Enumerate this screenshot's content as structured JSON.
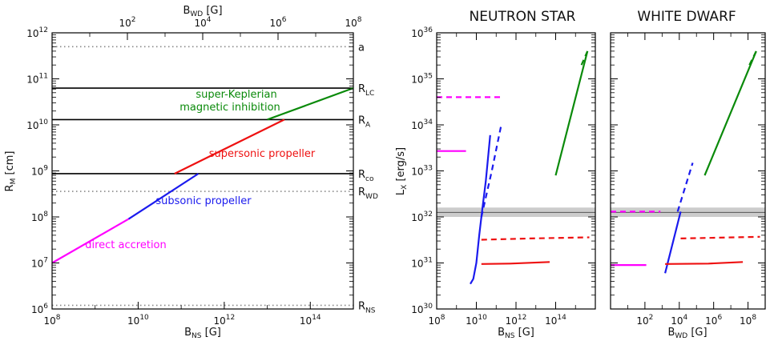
{
  "colors": {
    "black": "#000000",
    "green": "#0a8a0a",
    "red": "#ee1111",
    "blue": "#1a1aee",
    "magenta": "#ff00ff",
    "gray_dotted": "#888888",
    "band": "#cccccc"
  },
  "chart_data": [
    {
      "type": "line",
      "xlabel": "B_NS [G]",
      "x2label": "B_WD [G]",
      "ylabel": "R_M [cm]",
      "x_scale": "log",
      "y_scale": "log",
      "xlim": [
        100000000.0,
        1000000000000000.0
      ],
      "x2lim": [
        1,
        100000000.0
      ],
      "ylim": [
        1000000.0,
        1000000000000.0
      ],
      "x_ticks": [
        {
          "value": 100000000.0,
          "base": "10",
          "exp": "8"
        },
        {
          "value": 10000000000.0,
          "base": "10",
          "exp": "10"
        },
        {
          "value": 1000000000000.0,
          "base": "10",
          "exp": "12"
        },
        {
          "value": 100000000000000.0,
          "base": "10",
          "exp": "14"
        }
      ],
      "x2_ticks": [
        {
          "value": 100.0,
          "base": "10",
          "exp": "2"
        },
        {
          "value": 10000.0,
          "base": "10",
          "exp": "4"
        },
        {
          "value": 1000000.0,
          "base": "10",
          "exp": "6"
        },
        {
          "value": 100000000.0,
          "base": "10",
          "exp": "8"
        }
      ],
      "y_ticks": [
        {
          "value": 1000000.0,
          "base": "10",
          "exp": "6"
        },
        {
          "value": 10000000.0,
          "base": "10",
          "exp": "7"
        },
        {
          "value": 100000000.0,
          "base": "10",
          "exp": "8"
        },
        {
          "value": 1000000000.0,
          "base": "10",
          "exp": "9"
        },
        {
          "value": 10000000000.0,
          "base": "10",
          "exp": "10"
        },
        {
          "value": 100000000000.0,
          "base": "10",
          "exp": "11"
        },
        {
          "value": 1000000000000.0,
          "base": "10",
          "exp": "12"
        }
      ],
      "reference_lines": [
        {
          "name": "a",
          "sub": "",
          "y": 500000000000.0,
          "style": "dotted"
        },
        {
          "name": "R",
          "sub": "LC",
          "y": 63000000000.0,
          "style": "solid"
        },
        {
          "name": "R",
          "sub": "A",
          "y": 13000000000.0,
          "style": "solid"
        },
        {
          "name": "R",
          "sub": "co",
          "y": 870000000.0,
          "style": "solid"
        },
        {
          "name": "R",
          "sub": "WD",
          "y": 360000000.0,
          "style": "dotted"
        },
        {
          "name": "R",
          "sub": "NS",
          "y": 1200000.0,
          "style": "dotted"
        }
      ],
      "series": [
        {
          "name": "direct accretion",
          "color_key": "magenta",
          "x": [
            100000000.0,
            6000000000.0
          ],
          "y": [
            10000000.0,
            90000000.0
          ]
        },
        {
          "name": "subsonic propeller",
          "color_key": "blue",
          "x": [
            6000000000.0,
            250000000000.0
          ],
          "y": [
            90000000.0,
            870000000.0
          ]
        },
        {
          "name": "supersonic propeller",
          "color_key": "red",
          "x": [
            70000000000.0,
            25000000000000.0
          ],
          "y": [
            870000000.0,
            13000000000.0
          ]
        },
        {
          "name": "super-Keplerian magnetic inhibition",
          "color_key": "green",
          "x": [
            10000000000000.0,
            1000000000000000.0
          ],
          "y": [
            13000000000.0,
            63000000000.0
          ]
        }
      ],
      "annotations": {
        "super_keplerian_1": "super-Keplerian",
        "super_keplerian_2": "magnetic inhibition",
        "supersonic": "supersonic propeller",
        "subsonic": "subsonic propeller",
        "direct": "direct accretion"
      }
    },
    {
      "type": "line",
      "title": "NEUTRON STAR",
      "xlabel": "B_NS [G]",
      "ylabel": "L_X [erg/s]",
      "x_scale": "log",
      "y_scale": "log",
      "xlim": [
        100000000.0,
        1e+16
      ],
      "ylim": [
        1e+30,
        1e+36
      ],
      "x_ticks": [
        {
          "value": 100000000.0,
          "base": "10",
          "exp": "8"
        },
        {
          "value": 10000000000.0,
          "base": "10",
          "exp": "10"
        },
        {
          "value": 1000000000000.0,
          "base": "10",
          "exp": "12"
        },
        {
          "value": 100000000000000.0,
          "base": "10",
          "exp": "14"
        }
      ],
      "y_ticks": [
        {
          "value": 1e+30,
          "base": "10",
          "exp": "30"
        },
        {
          "value": 1e+31,
          "base": "10",
          "exp": "31"
        },
        {
          "value": 1e+32,
          "base": "10",
          "exp": "32"
        },
        {
          "value": 1e+33,
          "base": "10",
          "exp": "33"
        },
        {
          "value": 1e+34,
          "base": "10",
          "exp": "34"
        },
        {
          "value": 1e+35,
          "base": "10",
          "exp": "35"
        },
        {
          "value": 1e+36,
          "base": "10",
          "exp": "36"
        }
      ],
      "band": {
        "y_low": 1e+32,
        "y_high": 1.6e+32,
        "center": 1.25e+32
      },
      "series": [
        {
          "color_key": "magenta",
          "dash": false,
          "x": [
            100000000.0,
            3000000000.0
          ],
          "y": [
            2.7e+33,
            2.7e+33
          ]
        },
        {
          "color_key": "magenta",
          "dash": true,
          "x": [
            100000000.0,
            200000000000.0
          ],
          "y": [
            4e+34,
            4e+34
          ]
        },
        {
          "color_key": "blue",
          "dash": false,
          "x": [
            5000000000.0,
            7000000000.0,
            10000000000.0,
            14000000000.0,
            20000000000.0,
            30000000000.0,
            50000000000.0
          ],
          "y": [
            3.5e+30,
            4.5e+30,
            1e+31,
            4e+31,
            1.5e+32,
            6e+32,
            6e+33
          ]
        },
        {
          "color_key": "blue",
          "dash": true,
          "x": [
            18000000000.0,
            60000000000.0,
            180000000000.0
          ],
          "y": [
            1e+32,
            1e+33,
            1e+34
          ]
        },
        {
          "color_key": "red",
          "dash": false,
          "x": [
            18000000000.0,
            500000000000.0,
            50000000000000.0
          ],
          "y": [
            9.5e+30,
            9.7e+30,
            1.05e+31
          ]
        },
        {
          "color_key": "red",
          "dash": true,
          "x": [
            18000000000.0,
            5000000000000.0,
            5000000000000000.0
          ],
          "y": [
            3.2e+31,
            3.4e+31,
            3.6e+31
          ]
        },
        {
          "color_key": "green",
          "dash": false,
          "x": [
            100000000000000.0,
            4000000000000000.0
          ],
          "y": [
            8e+32,
            4e+35
          ]
        },
        {
          "color_key": "green",
          "dash": true,
          "x": [
            2000000000000000.0,
            4000000000000000.0
          ],
          "y": [
            2e+35,
            4e+35
          ]
        }
      ]
    },
    {
      "type": "line",
      "title": "WHITE DWARF",
      "xlabel": "B_WD [G]",
      "x_scale": "log",
      "y_scale": "log",
      "xlim": [
        1,
        1000000000.0
      ],
      "ylim": [
        1e+30,
        1e+36
      ],
      "x_ticks": [
        {
          "value": 100.0,
          "base": "10",
          "exp": "2"
        },
        {
          "value": 10000.0,
          "base": "10",
          "exp": "4"
        },
        {
          "value": 1000000.0,
          "base": "10",
          "exp": "6"
        },
        {
          "value": 100000000.0,
          "base": "10",
          "exp": "8"
        }
      ],
      "band": {
        "y_low": 1e+32,
        "y_high": 1.6e+32,
        "center": 1.25e+32
      },
      "series": [
        {
          "color_key": "magenta",
          "dash": false,
          "x": [
            1,
            120.0
          ],
          "y": [
            9e+30,
            9e+30
          ]
        },
        {
          "color_key": "magenta",
          "dash": true,
          "x": [
            1,
            800.0
          ],
          "y": [
            1.3e+32,
            1.3e+32
          ]
        },
        {
          "color_key": "blue",
          "dash": false,
          "x": [
            1500.0,
            12000.0
          ],
          "y": [
            6e+30,
            1.3e+32
          ]
        },
        {
          "color_key": "blue",
          "dash": true,
          "x": [
            8000.0,
            60000.0
          ],
          "y": [
            1.3e+32,
            1.5e+33
          ]
        },
        {
          "color_key": "red",
          "dash": false,
          "x": [
            1500.0,
            500000.0,
            50000000.0
          ],
          "y": [
            9.5e+30,
            9.7e+30,
            1.05e+31
          ]
        },
        {
          "color_key": "red",
          "dash": true,
          "x": [
            12000.0,
            500000.0,
            500000000.0
          ],
          "y": [
            3.4e+31,
            3.5e+31,
            3.7e+31
          ]
        },
        {
          "color_key": "green",
          "dash": false,
          "x": [
            300000.0,
            300000000.0
          ],
          "y": [
            8e+32,
            4e+35
          ]
        },
        {
          "color_key": "green",
          "dash": true,
          "x": [
            120000000.0,
            300000000.0
          ],
          "y": [
            2e+35,
            4e+35
          ]
        }
      ]
    }
  ]
}
